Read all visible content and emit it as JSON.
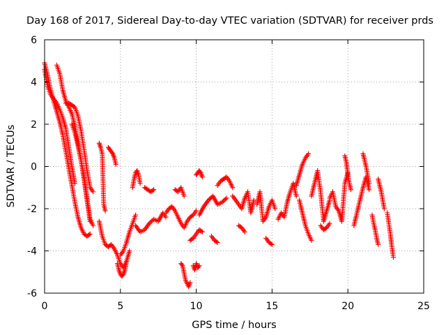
{
  "chart_data": {
    "type": "scatter",
    "title": "Day 168 of 2017, Sidereal Day-to-day VTEC variation (SDTVAR) for receiver prds",
    "xlabel": "GPS time / hours",
    "ylabel": "SDTVAR / TECUs",
    "xlim": [
      0,
      25
    ],
    "ylim": [
      -6,
      6
    ],
    "xticks": [
      0,
      5,
      10,
      15,
      20,
      25
    ],
    "yticks": [
      -6,
      -4,
      -2,
      0,
      2,
      4,
      6
    ],
    "xtick_labels": [
      "0",
      "5",
      "10",
      "15",
      "20",
      "25"
    ],
    "ytick_labels": [
      "-6",
      "-4",
      "-2",
      "0",
      "2",
      "4",
      "6"
    ],
    "grid": true,
    "marker": "+",
    "series_color": "#ff0000",
    "series": [
      {
        "name": "SDTVAR",
        "clusters": [
          {
            "x": [
              0.0,
              0.2,
              0.4,
              0.6,
              0.8,
              1.0,
              1.2,
              1.4,
              1.6,
              1.8,
              2.0,
              2.2,
              2.4,
              2.6,
              2.8,
              3.0
            ],
            "y": [
              4.9,
              4.3,
              3.6,
              3.1,
              2.6,
              2.1,
              1.5,
              0.7,
              -0.1,
              -0.9,
              -1.7,
              -2.4,
              -2.9,
              -3.2,
              -3.3,
              -3.2
            ]
          },
          {
            "x": [
              0.0,
              0.2,
              0.4,
              0.6,
              0.8,
              1.0,
              1.2,
              1.4,
              1.6,
              1.8,
              2.0
            ],
            "y": [
              4.6,
              3.8,
              3.4,
              3.2,
              3.0,
              2.7,
              2.3,
              1.8,
              0.9,
              0.0,
              -0.8
            ]
          },
          {
            "x": [
              0.8,
              1.0,
              1.2,
              1.4,
              1.6,
              1.8,
              2.0,
              2.2,
              2.4,
              2.6,
              2.8,
              3.0
            ],
            "y": [
              4.8,
              4.4,
              3.6,
              3.1,
              2.8,
              2.5,
              1.9,
              1.1,
              0.3,
              -0.6,
              -1.6,
              -2.6
            ]
          },
          {
            "x": [
              1.4,
              1.6,
              1.8,
              2.0,
              2.2,
              2.4,
              2.6,
              2.8,
              3.0,
              3.2
            ],
            "y": [
              3.0,
              3.0,
              2.9,
              2.8,
              2.4,
              1.7,
              0.8,
              -0.2,
              -1.0,
              -1.2
            ]
          },
          {
            "x": [
              1.8,
              2.0,
              2.2,
              2.4,
              2.6,
              2.8,
              3.0,
              3.2
            ],
            "y": [
              2.0,
              1.6,
              1.0,
              0.3,
              -0.5,
              -1.5,
              -2.5,
              -2.8
            ]
          },
          {
            "x": [
              3.6,
              3.7,
              3.8,
              3.9,
              4.0
            ],
            "y": [
              1.1,
              0.9,
              0.6,
              -1.8,
              -2.1
            ]
          },
          {
            "x": [
              4.2,
              4.3,
              4.4,
              4.5,
              4.6,
              4.7
            ],
            "y": [
              0.9,
              0.8,
              0.7,
              0.6,
              0.4,
              0.1
            ]
          },
          {
            "x": [
              3.6,
              3.8,
              4.0,
              4.2,
              4.4,
              4.6,
              4.8,
              5.0,
              5.2,
              5.4,
              5.6
            ],
            "y": [
              -2.6,
              -3.3,
              -3.7,
              -3.8,
              -3.7,
              -3.9,
              -4.2,
              -4.6,
              -4.8,
              -4.5,
              -4.0
            ]
          },
          {
            "x": [
              4.8,
              4.9,
              5.0,
              5.1,
              5.2,
              5.3,
              5.4
            ],
            "y": [
              -4.6,
              -4.9,
              -5.1,
              -5.2,
              -5.1,
              -4.9,
              -4.5
            ]
          },
          {
            "x": [
              5.0,
              5.2,
              5.4,
              5.6,
              5.8,
              6.0
            ],
            "y": [
              -4.2,
              -4.0,
              -3.6,
              -3.1,
              -2.7,
              -2.3
            ]
          },
          {
            "x": [
              5.8,
              5.9,
              6.0,
              6.1,
              6.2,
              6.3
            ],
            "y": [
              -1.0,
              -0.6,
              -0.3,
              -0.2,
              -0.4,
              -0.8
            ]
          },
          {
            "x": [
              6.0,
              6.3,
              6.6,
              6.9,
              7.2,
              7.5,
              7.8,
              8.0
            ],
            "y": [
              -2.8,
              -3.1,
              -3.0,
              -2.7,
              -2.5,
              -2.6,
              -2.2,
              -2.4
            ]
          },
          {
            "x": [
              6.6,
              6.8,
              7.0,
              7.2
            ],
            "y": [
              -1.0,
              -1.1,
              -1.2,
              -1.1
            ]
          },
          {
            "x": [
              8.0,
              8.2,
              8.4,
              8.6,
              8.8,
              9.0,
              9.2,
              9.4,
              9.6,
              9.8,
              10.0
            ],
            "y": [
              -2.2,
              -2.0,
              -1.9,
              -2.1,
              -2.4,
              -2.7,
              -2.9,
              -2.6,
              -2.4,
              -2.3,
              -2.1
            ]
          },
          {
            "x": [
              8.6,
              8.8,
              9.0,
              9.2
            ],
            "y": [
              -1.1,
              -1.2,
              -1.0,
              -1.4
            ]
          },
          {
            "x": [
              9.0,
              9.1,
              9.3,
              9.5,
              9.6
            ],
            "y": [
              -4.6,
              -4.7,
              -5.4,
              -5.7,
              -5.5
            ]
          },
          {
            "x": [
              9.6,
              9.8,
              10.0,
              10.2,
              10.4
            ],
            "y": [
              -3.5,
              -3.4,
              -3.2,
              -3.0,
              -3.1
            ]
          },
          {
            "x": [
              9.8,
              9.9,
              10.0,
              10.1,
              10.2
            ],
            "y": [
              -4.7,
              -4.9,
              -4.6,
              -4.8,
              -4.7
            ]
          },
          {
            "x": [
              10.0,
              10.1,
              10.2,
              10.3,
              10.4
            ],
            "y": [
              -0.4,
              -0.3,
              -0.2,
              -0.3,
              -0.5
            ]
          },
          {
            "x": [
              10.2,
              10.5,
              10.8,
              11.1,
              11.4,
              11.7,
              12.0
            ],
            "y": [
              -2.3,
              -1.9,
              -1.6,
              -1.4,
              -1.8,
              -1.7,
              -1.5
            ]
          },
          {
            "x": [
              11.0,
              11.2,
              11.4
            ],
            "y": [
              -3.3,
              -3.5,
              -3.6
            ]
          },
          {
            "x": [
              11.4,
              11.6,
              11.8,
              12.0,
              12.2,
              12.4
            ],
            "y": [
              -0.9,
              -0.7,
              -0.6,
              -0.5,
              -0.7,
              -1.0
            ]
          },
          {
            "x": [
              12.4,
              12.6,
              12.8,
              13.0,
              13.2,
              13.4,
              13.6,
              13.8
            ],
            "y": [
              -1.4,
              -1.6,
              -1.8,
              -2.0,
              -1.5,
              -1.2,
              -2.2,
              -1.6
            ]
          },
          {
            "x": [
              12.8,
              13.0,
              13.2
            ],
            "y": [
              -2.8,
              -2.9,
              -3.1
            ]
          },
          {
            "x": [
              14.0,
              14.2,
              14.4,
              14.6,
              14.8,
              15.0,
              15.2
            ],
            "y": [
              -1.8,
              -1.2,
              -2.6,
              -2.4,
              -1.9,
              -1.6,
              -2.0
            ]
          },
          {
            "x": [
              14.6,
              14.8,
              15.0
            ],
            "y": [
              -3.4,
              -3.6,
              -3.7
            ]
          },
          {
            "x": [
              15.4,
              15.6,
              15.8,
              16.0,
              16.2,
              16.4,
              16.6
            ],
            "y": [
              -2.5,
              -2.2,
              -2.4,
              -1.7,
              -1.2,
              -0.8,
              -1.4
            ]
          },
          {
            "x": [
              16.6,
              16.8,
              17.0,
              17.2,
              17.4
            ],
            "y": [
              -0.9,
              -0.4,
              0.1,
              0.4,
              0.6
            ]
          },
          {
            "x": [
              16.8,
              17.0,
              17.2,
              17.4,
              17.6
            ],
            "y": [
              -1.6,
              -2.2,
              -2.8,
              -3.2,
              -3.5
            ]
          },
          {
            "x": [
              17.6,
              17.8,
              18.0,
              18.2,
              18.4,
              18.6,
              18.8
            ],
            "y": [
              -1.4,
              -0.8,
              -0.2,
              -1.2,
              -2.6,
              -2.1,
              -1.6
            ]
          },
          {
            "x": [
              18.2,
              18.4,
              18.6,
              18.8
            ],
            "y": [
              -2.8,
              -3.0,
              -2.9,
              -2.7
            ]
          },
          {
            "x": [
              18.8,
              19.0,
              19.2,
              19.4,
              19.6,
              19.8,
              20.0
            ],
            "y": [
              -1.5,
              -1.2,
              -1.9,
              -2.1,
              -2.6,
              -0.8,
              -0.3
            ]
          },
          {
            "x": [
              19.8,
              19.9,
              20.0,
              20.1,
              20.2
            ],
            "y": [
              0.5,
              0.2,
              -0.4,
              -0.8,
              -1.1
            ]
          },
          {
            "x": [
              20.4,
              20.6,
              20.8,
              21.0,
              21.2,
              21.4
            ],
            "y": [
              -2.8,
              -2.2,
              -1.6,
              -1.0,
              -0.5,
              -1.1
            ]
          },
          {
            "x": [
              21.0,
              21.1,
              21.2,
              21.3,
              21.4
            ],
            "y": [
              0.6,
              0.3,
              0.0,
              -0.4,
              -0.8
            ]
          },
          {
            "x": [
              21.6,
              21.7,
              21.8,
              21.9,
              22.0
            ],
            "y": [
              -2.3,
              -2.7,
              -3.0,
              -3.4,
              -3.7
            ]
          },
          {
            "x": [
              22.0,
              22.1,
              22.2,
              22.3,
              22.4
            ],
            "y": [
              -0.6,
              -0.9,
              -1.2,
              -1.6,
              -2.0
            ]
          },
          {
            "x": [
              22.6,
              22.7,
              22.8,
              22.9,
              23.0
            ],
            "y": [
              -2.2,
              -2.7,
              -3.2,
              -3.8,
              -4.3
            ]
          }
        ]
      }
    ]
  }
}
